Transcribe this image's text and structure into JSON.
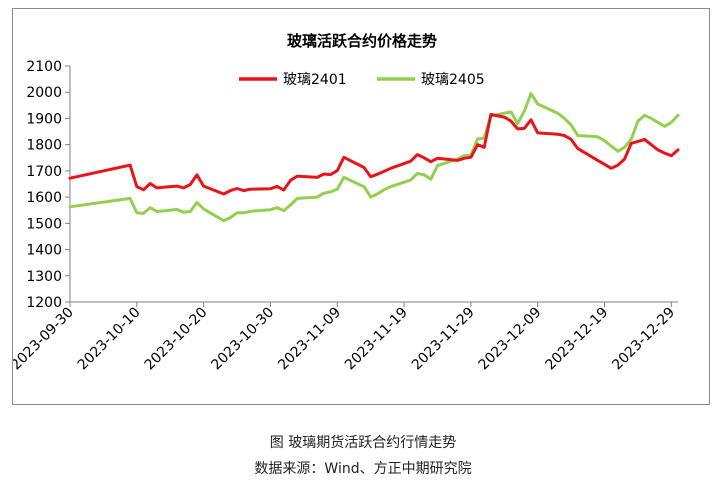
{
  "chart_data": {
    "type": "line",
    "title": "玻璃活跃合约价格走势",
    "xlabel": "",
    "ylabel": "",
    "ylim": [
      1200,
      2100
    ],
    "yticks": [
      1200,
      1300,
      1400,
      1500,
      1600,
      1700,
      1800,
      1900,
      2000,
      2100
    ],
    "xlim": [
      "2023-09-30",
      "2023-12-30"
    ],
    "xticks": [
      "2023-09-30",
      "2023-10-10",
      "2023-10-20",
      "2023-10-30",
      "2023-11-09",
      "2023-11-19",
      "2023-11-29",
      "2023-12-09",
      "2023-12-19",
      "2023-12-29"
    ],
    "grid": false,
    "legend_position": "top-center",
    "series": [
      {
        "name": "玻璃2401",
        "color": "#e8141a",
        "points": [
          [
            "2023-09-30",
            1672
          ],
          [
            "2023-10-09",
            1722
          ],
          [
            "2023-10-10",
            1640
          ],
          [
            "2023-10-11",
            1628
          ],
          [
            "2023-10-12",
            1652
          ],
          [
            "2023-10-13",
            1635
          ],
          [
            "2023-10-15",
            1640
          ],
          [
            "2023-10-16",
            1642
          ],
          [
            "2023-10-17",
            1635
          ],
          [
            "2023-10-18",
            1648
          ],
          [
            "2023-10-19",
            1685
          ],
          [
            "2023-10-20",
            1642
          ],
          [
            "2023-10-23",
            1612
          ],
          [
            "2023-10-24",
            1625
          ],
          [
            "2023-10-25",
            1633
          ],
          [
            "2023-10-26",
            1625
          ],
          [
            "2023-10-27",
            1630
          ],
          [
            "2023-10-30",
            1632
          ],
          [
            "2023-10-31",
            1641
          ],
          [
            "2023-11-01",
            1627
          ],
          [
            "2023-11-02",
            1664
          ],
          [
            "2023-11-03",
            1680
          ],
          [
            "2023-11-06",
            1675
          ],
          [
            "2023-11-07",
            1688
          ],
          [
            "2023-11-08",
            1686
          ],
          [
            "2023-11-09",
            1701
          ],
          [
            "2023-11-10",
            1752
          ],
          [
            "2023-11-13",
            1713
          ],
          [
            "2023-11-14",
            1678
          ],
          [
            "2023-11-15",
            1687
          ],
          [
            "2023-11-16",
            1698
          ],
          [
            "2023-11-17",
            1710
          ],
          [
            "2023-11-20",
            1737
          ],
          [
            "2023-11-21",
            1762
          ],
          [
            "2023-11-22",
            1750
          ],
          [
            "2023-11-23",
            1735
          ],
          [
            "2023-11-24",
            1748
          ],
          [
            "2023-11-27",
            1740
          ],
          [
            "2023-11-28",
            1748
          ],
          [
            "2023-11-29",
            1752
          ],
          [
            "2023-11-30",
            1800
          ],
          [
            "2023-12-01",
            1790
          ],
          [
            "2023-12-02",
            1915
          ],
          [
            "2023-12-04",
            1905
          ],
          [
            "2023-12-05",
            1890
          ],
          [
            "2023-12-06",
            1860
          ],
          [
            "2023-12-07",
            1862
          ],
          [
            "2023-12-08",
            1895
          ],
          [
            "2023-12-09",
            1845
          ],
          [
            "2023-12-12",
            1840
          ],
          [
            "2023-12-13",
            1835
          ],
          [
            "2023-12-14",
            1820
          ],
          [
            "2023-12-15",
            1785
          ],
          [
            "2023-12-18",
            1740
          ],
          [
            "2023-12-19",
            1725
          ],
          [
            "2023-12-20",
            1710
          ],
          [
            "2023-12-21",
            1722
          ],
          [
            "2023-12-22",
            1745
          ],
          [
            "2023-12-23",
            1805
          ],
          [
            "2023-12-25",
            1820
          ],
          [
            "2023-12-26",
            1800
          ],
          [
            "2023-12-27",
            1780
          ],
          [
            "2023-12-28",
            1768
          ],
          [
            "2023-12-29",
            1758
          ],
          [
            "2023-12-30",
            1780
          ]
        ]
      },
      {
        "name": "玻璃2405",
        "color": "#92d050",
        "points": [
          [
            "2023-09-30",
            1563
          ],
          [
            "2023-10-09",
            1595
          ],
          [
            "2023-10-10",
            1540
          ],
          [
            "2023-10-11",
            1538
          ],
          [
            "2023-10-12",
            1560
          ],
          [
            "2023-10-13",
            1545
          ],
          [
            "2023-10-15",
            1550
          ],
          [
            "2023-10-16",
            1553
          ],
          [
            "2023-10-17",
            1542
          ],
          [
            "2023-10-18",
            1545
          ],
          [
            "2023-10-19",
            1580
          ],
          [
            "2023-10-20",
            1555
          ],
          [
            "2023-10-23",
            1510
          ],
          [
            "2023-10-24",
            1522
          ],
          [
            "2023-10-25",
            1540
          ],
          [
            "2023-10-26",
            1540
          ],
          [
            "2023-10-27",
            1546
          ],
          [
            "2023-10-30",
            1552
          ],
          [
            "2023-10-31",
            1560
          ],
          [
            "2023-11-01",
            1548
          ],
          [
            "2023-11-02",
            1570
          ],
          [
            "2023-11-03",
            1595
          ],
          [
            "2023-11-06",
            1600
          ],
          [
            "2023-11-07",
            1615
          ],
          [
            "2023-11-08",
            1620
          ],
          [
            "2023-11-09",
            1630
          ],
          [
            "2023-11-10",
            1675
          ],
          [
            "2023-11-13",
            1640
          ],
          [
            "2023-11-14",
            1600
          ],
          [
            "2023-11-15",
            1612
          ],
          [
            "2023-11-16",
            1628
          ],
          [
            "2023-11-17",
            1640
          ],
          [
            "2023-11-20",
            1665
          ],
          [
            "2023-11-21",
            1690
          ],
          [
            "2023-11-22",
            1685
          ],
          [
            "2023-11-23",
            1668
          ],
          [
            "2023-11-24",
            1720
          ],
          [
            "2023-11-27",
            1745
          ],
          [
            "2023-11-28",
            1758
          ],
          [
            "2023-11-29",
            1760
          ],
          [
            "2023-11-30",
            1822
          ],
          [
            "2023-12-01",
            1825
          ],
          [
            "2023-12-02",
            1910
          ],
          [
            "2023-12-04",
            1920
          ],
          [
            "2023-12-05",
            1925
          ],
          [
            "2023-12-06",
            1880
          ],
          [
            "2023-12-07",
            1928
          ],
          [
            "2023-12-08",
            1995
          ],
          [
            "2023-12-09",
            1955
          ],
          [
            "2023-12-12",
            1920
          ],
          [
            "2023-12-13",
            1900
          ],
          [
            "2023-12-14",
            1875
          ],
          [
            "2023-12-15",
            1835
          ],
          [
            "2023-12-18",
            1830
          ],
          [
            "2023-12-19",
            1815
          ],
          [
            "2023-12-20",
            1795
          ],
          [
            "2023-12-21",
            1775
          ],
          [
            "2023-12-22",
            1790
          ],
          [
            "2023-12-23",
            1820
          ],
          [
            "2023-12-24",
            1890
          ],
          [
            "2023-12-25",
            1912
          ],
          [
            "2023-12-26",
            1900
          ],
          [
            "2023-12-27",
            1885
          ],
          [
            "2023-12-28",
            1870
          ],
          [
            "2023-12-29",
            1885
          ],
          [
            "2023-12-30",
            1912
          ]
        ]
      }
    ]
  },
  "captions": {
    "figure": "图  玻璃期货活跃合约行情走势",
    "source": "数据来源：Wind、方正中期研究院"
  }
}
